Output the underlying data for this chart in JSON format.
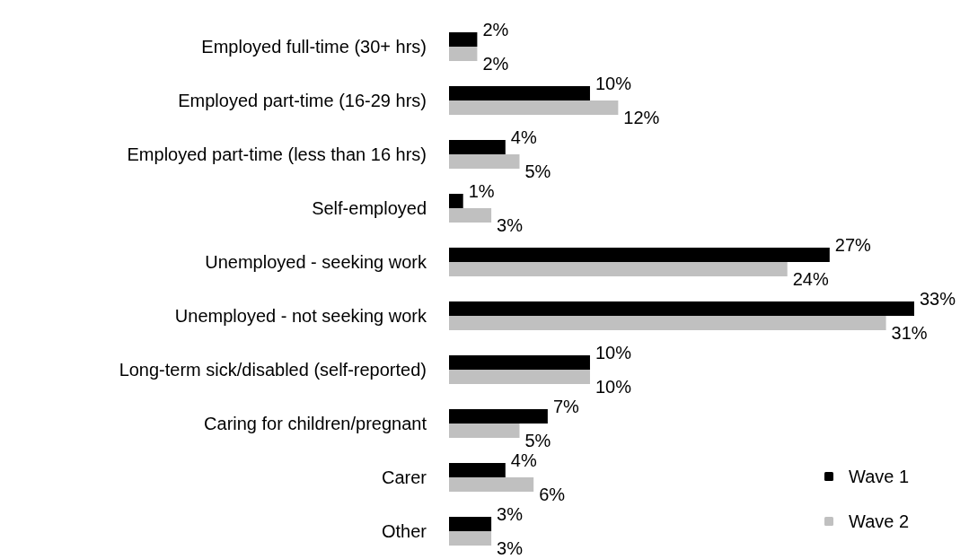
{
  "chart_data": {
    "type": "bar",
    "orientation": "horizontal",
    "categories": [
      "Employed full-time (30+ hrs)",
      "Employed part-time (16-29 hrs)",
      "Employed part-time (less than 16 hrs)",
      "Self-employed",
      "Unemployed - seeking work",
      "Unemployed - not seeking work",
      "Long-term sick/disabled (self-reported)",
      "Caring for children/pregnant",
      "Carer",
      "Other"
    ],
    "series": [
      {
        "name": "Wave 1",
        "color": "#000000",
        "values": [
          2,
          10,
          4,
          1,
          27,
          33,
          10,
          7,
          4,
          3
        ],
        "value_labels": [
          "2%",
          "10%",
          "4%",
          "1%",
          "27%",
          "33%",
          "10%",
          "7%",
          "4%",
          "3%"
        ]
      },
      {
        "name": "Wave 2",
        "color": "#c0c0c0",
        "values": [
          2,
          12,
          5,
          3,
          24,
          31,
          10,
          5,
          6,
          3
        ],
        "value_labels": [
          "2%",
          "12%",
          "5%",
          "3%",
          "24%",
          "31%",
          "10%",
          "5%",
          "6%",
          "3%"
        ]
      }
    ],
    "legend": "bottom right",
    "marker": "square"
  }
}
